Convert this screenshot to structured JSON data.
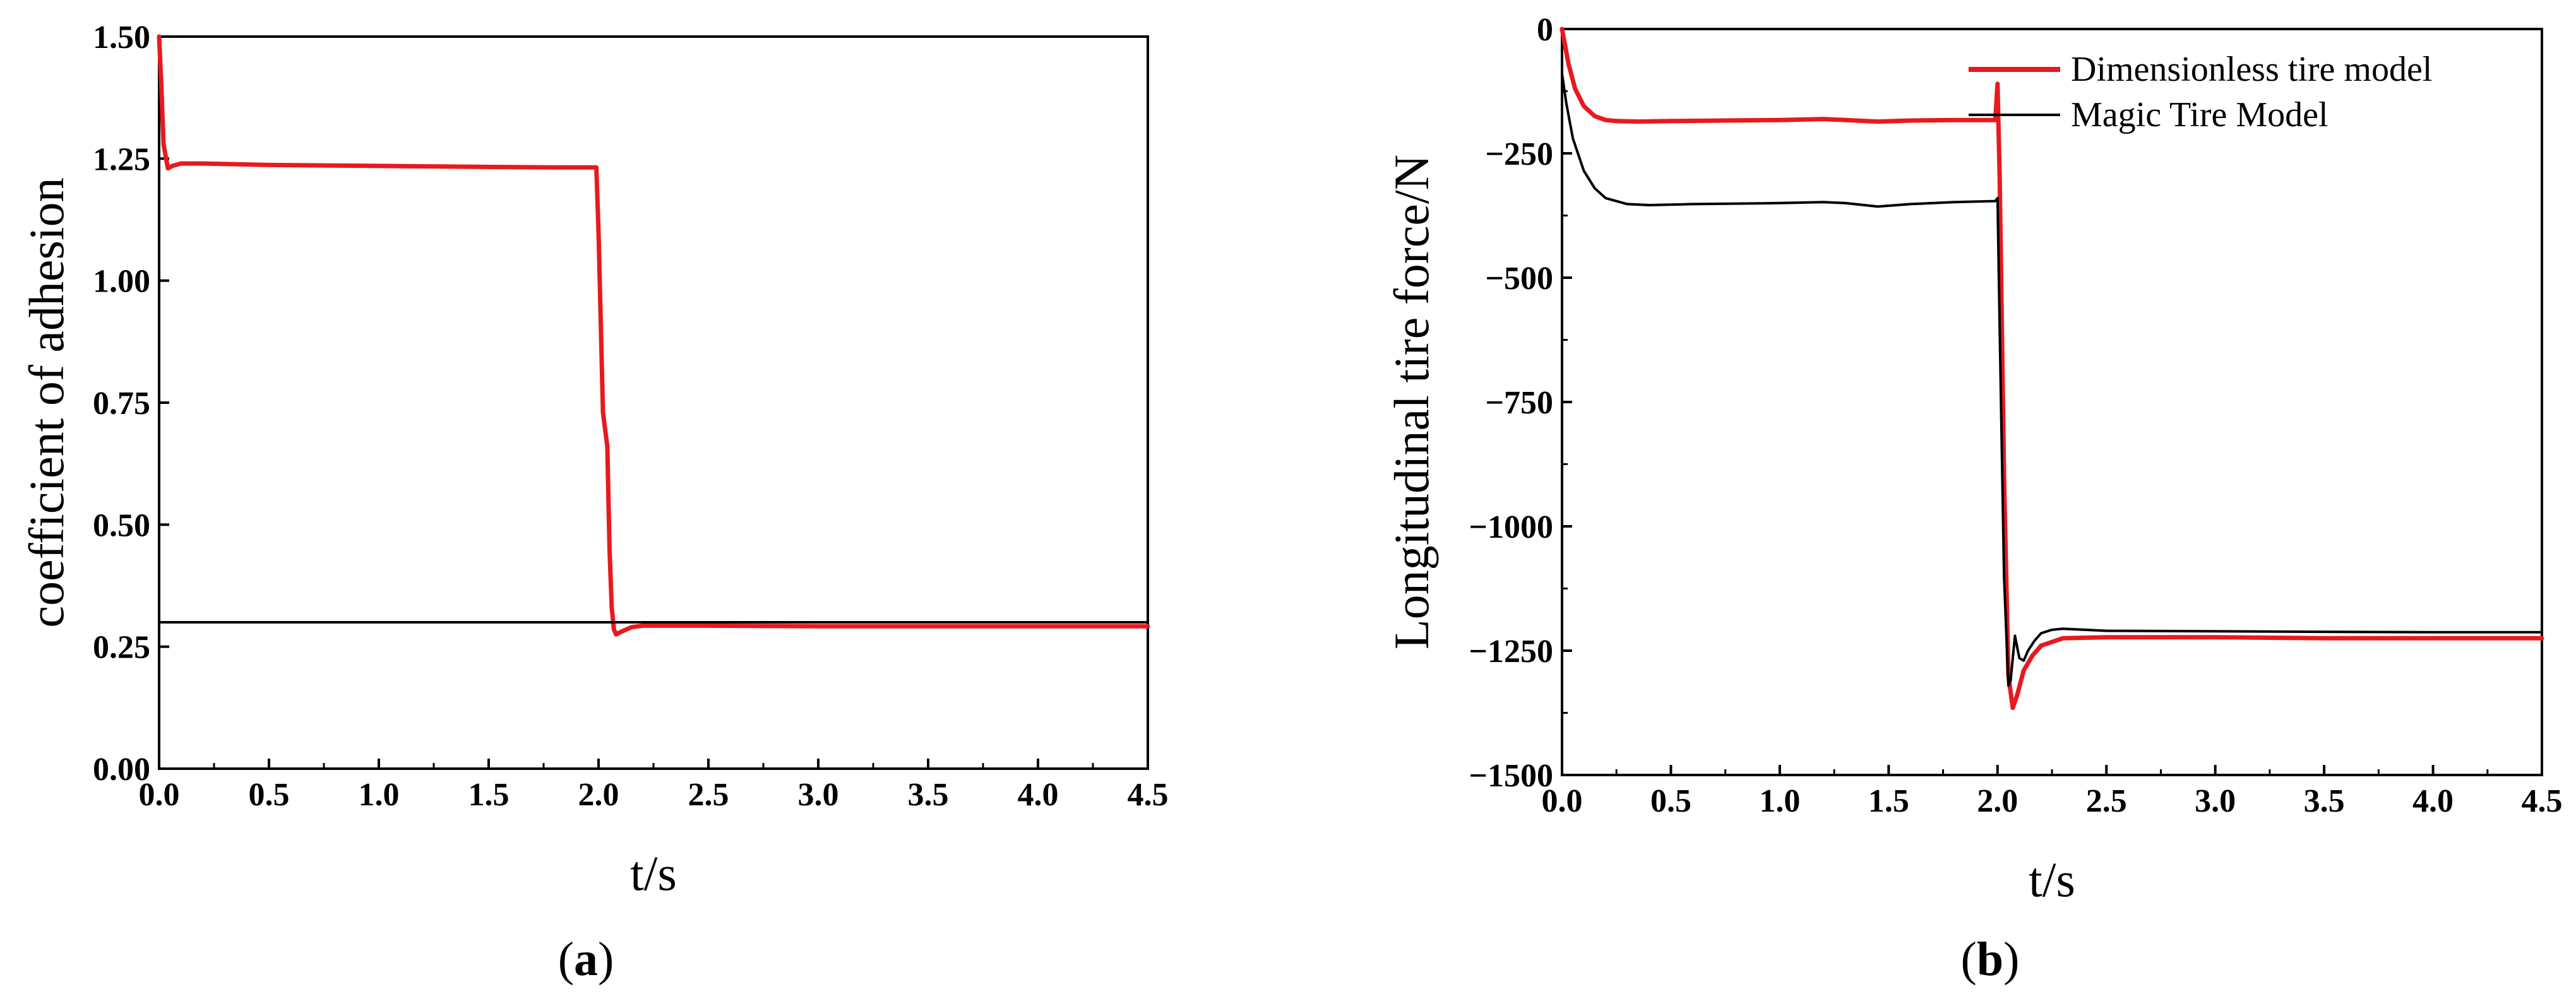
{
  "chart_data": [
    {
      "type": "line",
      "caption_letter": "a",
      "xlabel": "t/s",
      "ylabel": "coefficient of adhesion",
      "xlim": [
        0,
        4.5
      ],
      "ylim": [
        0,
        1.5
      ],
      "xticks": [
        "0.0",
        "0.5",
        "1.0",
        "1.5",
        "2.0",
        "2.5",
        "3.0",
        "3.5",
        "4.0",
        "4.5"
      ],
      "yticks": [
        "0.00",
        "0.25",
        "0.50",
        "0.75",
        "1.00",
        "1.25",
        "1.50"
      ],
      "grid": false,
      "legend": null,
      "series": [
        {
          "color": "#e8191f",
          "x": [
            0.0,
            0.01,
            0.02,
            0.04,
            0.06,
            0.1,
            0.2,
            0.5,
            1.0,
            1.5,
            1.8,
            1.99,
            2.0,
            2.02,
            2.04,
            2.05,
            2.06,
            2.07,
            2.08,
            2.1,
            2.15,
            2.2,
            2.5,
            3.0,
            3.5,
            4.0,
            4.5
          ],
          "y": [
            1.5,
            1.4,
            1.28,
            1.23,
            1.235,
            1.24,
            1.24,
            1.237,
            1.235,
            1.233,
            1.232,
            1.232,
            1.1,
            0.73,
            0.66,
            0.45,
            0.33,
            0.285,
            0.275,
            0.28,
            0.29,
            0.293,
            0.293,
            0.292,
            0.292,
            0.292,
            0.292
          ]
        },
        {
          "color": "#000000",
          "x": [
            0.0,
            4.5
          ],
          "y": [
            0.3,
            0.3
          ]
        }
      ]
    },
    {
      "type": "line",
      "caption_letter": "b",
      "xlabel": "t/s",
      "ylabel": "Longitudinal tire force/N",
      "xlim": [
        0,
        4.5
      ],
      "ylim": [
        -1500,
        0
      ],
      "xticks": [
        "0.0",
        "0.5",
        "1.0",
        "1.5",
        "2.0",
        "2.5",
        "3.0",
        "3.5",
        "4.0",
        "4.5"
      ],
      "yticks": [
        "0",
        "-250",
        "-500",
        "-750",
        "-1000",
        "-1250",
        "-1500"
      ],
      "grid": false,
      "legend": "top-right",
      "series": [
        {
          "name": "Dimensionless tire model",
          "color": "#e8191f",
          "x": [
            0.0,
            0.03,
            0.06,
            0.1,
            0.15,
            0.2,
            0.25,
            0.35,
            0.5,
            1.0,
            1.2,
            1.45,
            1.6,
            1.8,
            1.99,
            2.0,
            2.01,
            2.03,
            2.05,
            2.07,
            2.09,
            2.12,
            2.16,
            2.2,
            2.3,
            2.5,
            3.0,
            3.5,
            4.0,
            4.5
          ],
          "y": [
            0,
            -70,
            -120,
            -155,
            -175,
            -183,
            -185,
            -186,
            -185,
            -183,
            -181,
            -186,
            -184,
            -183,
            -183,
            -110,
            -300,
            -900,
            -1300,
            -1365,
            -1340,
            -1290,
            -1260,
            -1240,
            -1225,
            -1223,
            -1223,
            -1225,
            -1225,
            -1225
          ]
        },
        {
          "name": "Magic Tire Model",
          "color": "#000000",
          "x": [
            0.0,
            0.02,
            0.05,
            0.1,
            0.15,
            0.2,
            0.3,
            0.4,
            0.6,
            1.0,
            1.2,
            1.3,
            1.45,
            1.6,
            1.8,
            1.99,
            2.0,
            2.01,
            2.03,
            2.05,
            2.06,
            2.08,
            2.1,
            2.12,
            2.14,
            2.17,
            2.2,
            2.25,
            2.3,
            2.4,
            2.5,
            3.0,
            3.5,
            4.0,
            4.5
          ],
          "y": [
            -90,
            -150,
            -220,
            -285,
            -320,
            -340,
            -352,
            -354,
            -352,
            -350,
            -348,
            -350,
            -357,
            -352,
            -348,
            -346,
            -340,
            -600,
            -1100,
            -1320,
            -1310,
            -1220,
            -1265,
            -1270,
            -1250,
            -1230,
            -1215,
            -1208,
            -1206,
            -1208,
            -1210,
            -1211,
            -1212,
            -1213,
            -1213
          ]
        }
      ]
    }
  ]
}
